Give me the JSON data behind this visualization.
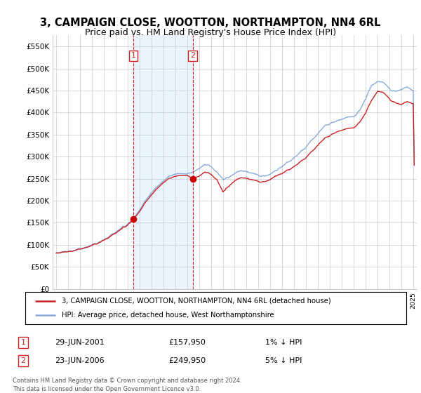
{
  "title": "3, CAMPAIGN CLOSE, WOOTTON, NORTHAMPTON, NN4 6RL",
  "subtitle": "Price paid vs. HM Land Registry's House Price Index (HPI)",
  "title_fontsize": 10.5,
  "subtitle_fontsize": 9,
  "background_color": "#ffffff",
  "plot_bg_color": "#ffffff",
  "grid_color": "#cccccc",
  "sale1_x": 2001.49,
  "sale1_y": 157950,
  "sale2_x": 2006.48,
  "sale2_y": 249950,
  "shade_color": "#ddeeff",
  "legend_line1": "3, CAMPAIGN CLOSE, WOOTTON, NORTHAMPTON, NN4 6RL (detached house)",
  "legend_line2": "HPI: Average price, detached house, West Northamptonshire",
  "ann1_date": "29-JUN-2001",
  "ann1_price": "£157,950",
  "ann1_pct": "1% ↓ HPI",
  "ann2_date": "23-JUN-2006",
  "ann2_price": "£249,950",
  "ann2_pct": "5% ↓ HPI",
  "footnote_line1": "Contains HM Land Registry data © Crown copyright and database right 2024.",
  "footnote_line2": "This data is licensed under the Open Government Licence v3.0.",
  "hpi_color": "#88aadd",
  "sale_color": "#cc2222",
  "marker_color": "#cc0000",
  "dash_color": "#cc2222",
  "ylim": [
    0,
    575000
  ],
  "yticks": [
    0,
    50000,
    100000,
    150000,
    200000,
    250000,
    300000,
    350000,
    400000,
    450000,
    500000,
    550000
  ],
  "xlim": [
    1994.7,
    2025.3
  ]
}
